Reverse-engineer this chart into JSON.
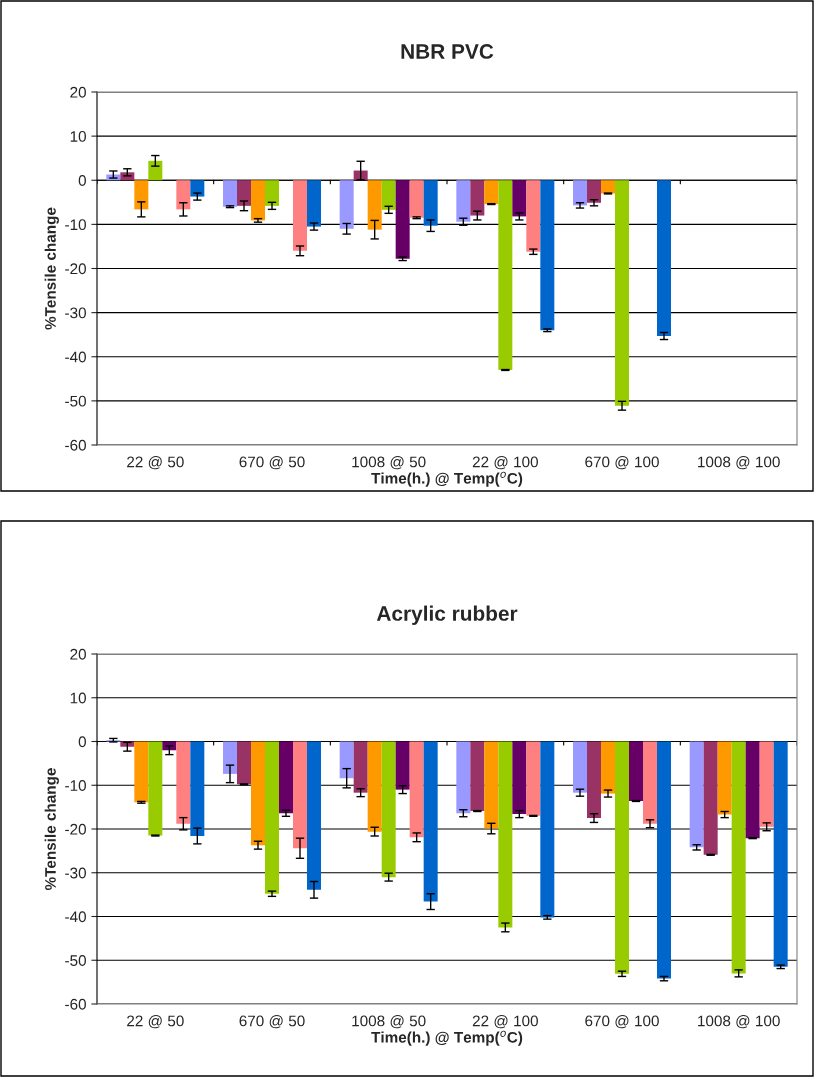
{
  "chart_data": [
    {
      "type": "bar",
      "title": "NBR PVC",
      "xlabel": "Time(h.) @ Temp($^{o}$C)",
      "ylabel": "%Tensile change",
      "categories": [
        "22 @ 50",
        "670 @ 50",
        "1008 @ 50",
        "22 @ 100",
        "670 @ 100",
        "1008 @ 100"
      ],
      "ylim": [
        -60,
        20
      ],
      "yticks": [
        -60,
        -50,
        -40,
        -30,
        -20,
        -10,
        0,
        10,
        20
      ],
      "grid": "y",
      "legend": false,
      "series": [
        {
          "color": "#9999ff",
          "values": [
            1.3,
            -6.0,
            -11.0,
            -9.4,
            -5.7,
            null
          ],
          "errors": [
            0.8,
            0.2,
            1.2,
            0.8,
            0.6,
            null
          ]
        },
        {
          "color": "#993366",
          "values": [
            1.8,
            -5.8,
            2.2,
            -8.0,
            -5.1,
            null
          ],
          "errors": [
            0.8,
            1.1,
            2.1,
            1.0,
            0.7,
            null
          ]
        },
        {
          "color": "#ff9900",
          "values": [
            -6.6,
            -9.1,
            -11.2,
            -5.4,
            -3.0,
            null
          ],
          "errors": [
            1.7,
            0.4,
            2.1,
            0.1,
            0.1,
            null
          ]
        },
        {
          "color": "#99cc00",
          "values": [
            4.4,
            -5.8,
            -6.7,
            -43.0,
            -51.1,
            null
          ],
          "errors": [
            1.2,
            0.8,
            0.8,
            0.1,
            1.0,
            null
          ]
        },
        {
          "color": "#660066",
          "values": [
            0,
            0,
            -17.8,
            -8.2,
            null,
            null
          ],
          "errors": [
            null,
            null,
            0.4,
            0.8,
            null,
            null
          ]
        },
        {
          "color": "#ff8080",
          "values": [
            -6.6,
            -16.0,
            -8.5,
            -16.2,
            null,
            null
          ],
          "errors": [
            1.5,
            1.1,
            0.2,
            0.6,
            null,
            null
          ]
        },
        {
          "color": "#0066cc",
          "values": [
            -3.7,
            -10.5,
            -10.3,
            -34.0,
            -35.3,
            null
          ],
          "errors": [
            0.8,
            0.8,
            1.3,
            0.3,
            0.8,
            null
          ]
        }
      ]
    },
    {
      "type": "bar",
      "title": "Acrylic rubber",
      "xlabel": "Time(h.) @ Temp($^{o}$C)",
      "ylabel": "%Tensile change",
      "categories": [
        "22 @ 50",
        "670 @ 50",
        "1008 @ 50",
        "22 @ 100",
        "670 @ 100",
        "1008 @ 100"
      ],
      "ylim": [
        -60,
        20
      ],
      "yticks": [
        -60,
        -50,
        -40,
        -30,
        -20,
        -10,
        0,
        10,
        20
      ],
      "grid": "y",
      "legend": false,
      "series": [
        {
          "color": "#9999ff",
          "values": [
            0.3,
            -7.4,
            -8.4,
            -16.4,
            -11.7,
            -24.2
          ],
          "errors": [
            0.4,
            2.0,
            2.2,
            0.8,
            0.8,
            0.6
          ]
        },
        {
          "color": "#993366",
          "values": [
            -1.2,
            -9.8,
            -11.7,
            -15.9,
            -17.5,
            -25.9
          ],
          "errors": [
            1.0,
            0.1,
            0.9,
            0.1,
            1.0,
            0.1
          ]
        },
        {
          "color": "#ff9900",
          "values": [
            -13.9,
            -23.7,
            -20.6,
            -19.9,
            -11.9,
            -16.7
          ],
          "errors": [
            0.2,
            0.9,
            1.0,
            1.2,
            0.8,
            0.7
          ]
        },
        {
          "color": "#99cc00",
          "values": [
            -21.5,
            -34.8,
            -31.0,
            -42.5,
            -53.1,
            -53.0
          ],
          "errors": [
            0.1,
            0.6,
            0.9,
            1.0,
            0.6,
            0.8
          ]
        },
        {
          "color": "#660066",
          "values": [
            -2.0,
            -16.4,
            -11.0,
            -16.6,
            -13.6,
            -22.1
          ],
          "errors": [
            1.0,
            0.7,
            0.9,
            0.8,
            0.1,
            0.1
          ]
        },
        {
          "color": "#ff8080",
          "values": [
            -18.8,
            -24.4,
            -21.9,
            -17.0,
            -18.8,
            -19.5
          ],
          "errors": [
            1.4,
            2.3,
            1.0,
            0.1,
            0.9,
            0.9
          ]
        },
        {
          "color": "#0066cc",
          "values": [
            -21.6,
            -33.9,
            -36.6,
            -40.2,
            -54.2,
            -51.5
          ],
          "errors": [
            1.8,
            1.9,
            1.8,
            0.4,
            0.5,
            0.4
          ]
        }
      ]
    }
  ]
}
